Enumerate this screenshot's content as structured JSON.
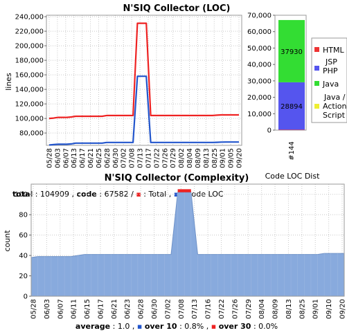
{
  "loc_chart": {
    "title": "N'SIQ Collector (LOC)",
    "ylabel": "lines",
    "summary": {
      "total_label": "total",
      "total_value": "104909",
      "code_label": "code",
      "code_value": "67582",
      "legend_total": "Total",
      "legend_code": "Code LOC",
      "color_total": "#ee2222",
      "color_code": "#2255cc"
    }
  },
  "dist_chart": {
    "xlabel": "Code LOC Dist",
    "category": "#144",
    "legend": [
      {
        "label": "HTML",
        "color": "#ee3333"
      },
      {
        "label": "JSP PHP",
        "color": "#5555ee"
      },
      {
        "label": "Java",
        "color": "#33dd33"
      },
      {
        "label": "Java / Action Script",
        "color": "#eeee33"
      }
    ]
  },
  "complexity_chart": {
    "title": "N'SIQ Collector (Complexity)",
    "ylabel": "count",
    "summary": {
      "average_label": "average",
      "average_value": "1.0",
      "over10_label": "over 10",
      "over10_value": "0.8%",
      "over30_label": "over 30",
      "over30_value": "0.0%",
      "color_over10": "#2255cc",
      "color_over30": "#ee2222"
    }
  },
  "chart_data": [
    {
      "type": "line",
      "title": "N'SIQ Collector (LOC)",
      "ylabel": "lines",
      "xlabel": "",
      "ylim": [
        63000,
        242000
      ],
      "yticks": [
        "80,000",
        "100,000",
        "120,000",
        "140,000",
        "160,000",
        "180,000",
        "200,000",
        "220,000",
        "240,000"
      ],
      "x_tick_labels": [
        "05/28",
        "06/03",
        "06/07",
        "06/13",
        "06/17",
        "06/21",
        "06/25",
        "06/28",
        "06/30",
        "07/02",
        "07/08",
        "07/13",
        "07/17",
        "07/22",
        "07/26",
        "07/29",
        "08/02",
        "08/04",
        "08/09",
        "08/13",
        "08/25",
        "09/01",
        "09/05",
        "09/20"
      ],
      "grid": true,
      "series": [
        {
          "name": "Total",
          "color": "#ee2222",
          "x": [
            0,
            1,
            2,
            3,
            4,
            5,
            6,
            7,
            8,
            9,
            10,
            11,
            12,
            13,
            14,
            15,
            16,
            17,
            18,
            19,
            20,
            21,
            22,
            23,
            24,
            25,
            26,
            27,
            28,
            29,
            30,
            31,
            32,
            33,
            34,
            35,
            36,
            37,
            38,
            39,
            40,
            41,
            42,
            43
          ],
          "values": [
            100000,
            100500,
            101500,
            101500,
            101500,
            102000,
            103000,
            103000,
            103000,
            103000,
            103000,
            103000,
            103000,
            104000,
            104000,
            104000,
            104000,
            104000,
            104000,
            104000,
            231000,
            231000,
            231000,
            104000,
            104000,
            104000,
            104000,
            104000,
            104000,
            104000,
            104000,
            104000,
            104000,
            104000,
            104000,
            104000,
            104000,
            104000,
            104500,
            104900,
            104900,
            104900,
            104900,
            104909
          ]
        },
        {
          "name": "Code LOC",
          "color": "#2255cc",
          "x": [
            0,
            1,
            2,
            3,
            4,
            5,
            6,
            7,
            8,
            9,
            10,
            11,
            12,
            13,
            14,
            15,
            16,
            17,
            18,
            19,
            20,
            21,
            22,
            23,
            24,
            25,
            26,
            27,
            28,
            29,
            30,
            31,
            32,
            33,
            34,
            35,
            36,
            37,
            38,
            39,
            40,
            41,
            42,
            43
          ],
          "values": [
            63500,
            64000,
            64500,
            64500,
            64500,
            65000,
            66000,
            66000,
            66000,
            66000,
            66000,
            66000,
            66000,
            67000,
            67000,
            67000,
            67000,
            67000,
            67000,
            67000,
            158000,
            158000,
            158000,
            67000,
            67000,
            67000,
            67000,
            67000,
            67000,
            67000,
            67000,
            67000,
            67000,
            67000,
            67000,
            67000,
            67000,
            67000,
            67200,
            67500,
            67582,
            67582,
            67582,
            67582
          ]
        }
      ]
    },
    {
      "type": "bar",
      "stacked": true,
      "xlabel": "Code LOC Dist",
      "categories": [
        "#144"
      ],
      "ylim": [
        0,
        70000
      ],
      "yticks": [
        "0",
        "10,000",
        "20,000",
        "30,000",
        "40,000",
        "50,000",
        "60,000",
        "70,000"
      ],
      "series": [
        {
          "name": "HTML",
          "color": "#ee3333",
          "values": [
            250
          ]
        },
        {
          "name": "JSP PHP",
          "color": "#5555ee",
          "values": [
            28894
          ]
        },
        {
          "name": "Java",
          "color": "#33dd33",
          "values": [
            37930
          ]
        },
        {
          "name": "Java / Action Script",
          "color": "#eeee33",
          "values": [
            0
          ]
        }
      ],
      "data_labels": [
        "28894",
        "37930"
      ]
    },
    {
      "type": "area",
      "stacked": true,
      "title": "N'SIQ Collector (Complexity)",
      "ylabel": "count",
      "ylim": [
        0,
        110
      ],
      "yticks": [
        "0",
        "20",
        "40",
        "60",
        "80",
        "100"
      ],
      "x_tick_labels": [
        "05/28",
        "06/03",
        "06/07",
        "06/11",
        "06/15",
        "06/17",
        "06/21",
        "06/23",
        "06/28",
        "06/30",
        "07/02",
        "07/08",
        "07/13",
        "07/16",
        "07/22",
        "07/26",
        "07/29",
        "08/04",
        "08/09",
        "08/13",
        "08/25",
        "09/01",
        "09/10",
        "09/20"
      ],
      "grid": true,
      "series": [
        {
          "name": "complexity",
          "color": "#88aadd",
          "x": [
            0,
            1,
            2,
            3,
            4,
            5,
            6,
            7,
            8,
            9,
            10,
            11,
            12,
            13,
            14,
            15,
            16,
            17,
            18,
            19,
            20,
            21,
            22,
            23,
            24,
            25,
            26,
            27,
            28,
            29,
            30,
            31,
            32,
            33,
            34,
            35,
            36,
            37,
            38,
            39,
            40,
            41,
            42,
            43,
            44,
            45,
            46,
            47
          ],
          "values": [
            38,
            39,
            39,
            39,
            39,
            39,
            39,
            40,
            41,
            41,
            41,
            41,
            41,
            41,
            41,
            41,
            41,
            41,
            41,
            41,
            41,
            41,
            102,
            102,
            102,
            41,
            41,
            41,
            41,
            41,
            41,
            41,
            41,
            41,
            41,
            41,
            41,
            41,
            41,
            41,
            41,
            41,
            41,
            41,
            42,
            42,
            42,
            42
          ]
        },
        {
          "name": "over 30",
          "color": "#ee2222",
          "x": [
            22,
            23,
            24
          ],
          "values": [
            3,
            3,
            3
          ]
        }
      ]
    }
  ]
}
